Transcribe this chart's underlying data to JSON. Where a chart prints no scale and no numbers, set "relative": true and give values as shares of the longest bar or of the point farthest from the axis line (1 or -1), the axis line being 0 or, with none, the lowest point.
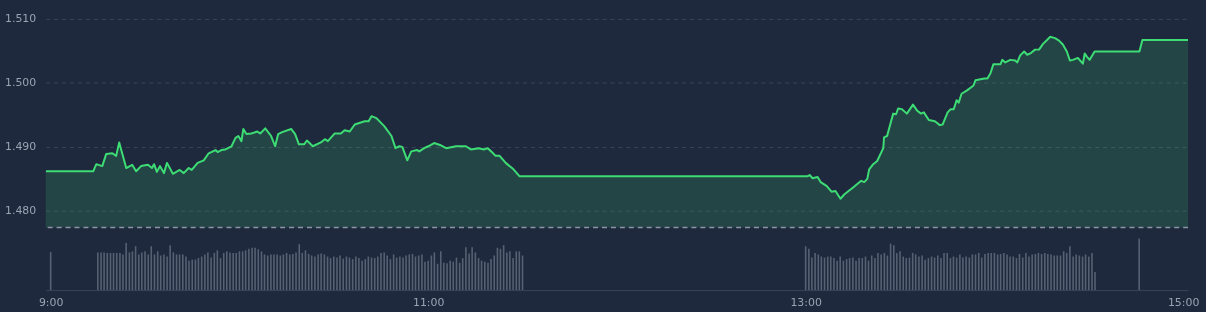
{
  "chart_data": [
    {
      "type": "area",
      "xlim": [
        9,
        15
      ],
      "ylim": [
        1.4774,
        1.51
      ],
      "yticks": [
        {
          "value": 1.48,
          "label": "1.480"
        },
        {
          "value": 1.49,
          "label": "1.490"
        },
        {
          "value": 1.5,
          "label": "1.500"
        },
        {
          "value": 1.51,
          "label": "1.510"
        }
      ],
      "grid": "y",
      "tick_labels": "y",
      "ref_lines": [
        {
          "axis": "y",
          "value": 1.4774,
          "color": "#8b95a5",
          "line_style": "dashed"
        }
      ],
      "series": [
        {
          "color": "#3ddc74",
          "x": [
            9.0,
            9.25,
            9.266,
            9.297,
            9.318,
            9.35,
            9.37,
            9.386,
            9.423,
            9.454,
            9.475,
            9.501,
            9.537,
            9.558,
            9.569,
            9.584,
            9.6,
            9.621,
            9.637,
            9.668,
            9.704,
            9.725,
            9.751,
            9.767,
            9.798,
            9.83,
            9.856,
            9.892,
            9.903,
            9.923,
            9.944,
            9.976,
            9.997,
            10.012,
            10.028,
            10.038,
            10.054,
            10.08,
            10.111,
            10.127,
            10.153,
            10.184,
            10.205,
            10.221,
            10.242,
            10.289,
            10.31,
            10.33,
            10.357,
            10.372,
            10.403,
            10.445,
            10.466,
            10.482,
            10.518,
            10.55,
            10.57,
            10.597,
            10.623,
            10.675,
            10.696,
            10.711,
            10.737,
            10.779,
            10.816,
            10.837,
            10.857,
            10.873,
            10.899,
            10.92,
            10.951,
            10.962,
            10.988,
            11.009,
            11.04,
            11.071,
            11.103,
            11.155,
            11.207,
            11.233,
            11.275,
            11.301,
            11.322,
            11.343,
            11.363,
            11.384,
            11.416,
            11.457,
            11.489,
            13.0,
            13.012,
            13.028,
            13.054,
            13.07,
            13.101,
            13.127,
            13.148,
            13.174,
            13.195,
            13.242,
            13.283,
            13.299,
            13.315,
            13.325,
            13.346,
            13.367,
            13.399,
            13.403,
            13.419,
            13.451,
            13.466,
            13.477,
            13.497,
            13.523,
            13.555,
            13.576,
            13.597,
            13.612,
            13.638,
            13.67,
            13.696,
            13.711,
            13.737,
            13.753,
            13.769,
            13.784,
            13.795,
            13.81,
            13.837,
            13.873,
            13.883,
            13.93,
            13.946,
            13.962,
            13.977,
            14.014,
            14.024,
            14.04,
            14.066,
            14.092,
            14.103,
            14.118,
            14.139,
            14.155,
            14.176,
            14.196,
            14.217,
            14.238,
            14.259,
            14.275,
            14.301,
            14.322,
            14.342,
            14.363,
            14.379,
            14.395,
            14.421,
            14.447,
            14.457,
            14.468,
            14.483,
            14.509,
            14.744,
            14.76,
            15.0
          ],
          "values": [
            1.4862,
            1.4862,
            1.4873,
            1.487,
            1.4889,
            1.489,
            1.4886,
            1.4907,
            1.4867,
            1.4872,
            1.4862,
            1.487,
            1.4872,
            1.4867,
            1.4873,
            1.4861,
            1.487,
            1.4859,
            1.4875,
            1.4858,
            1.4864,
            1.4859,
            1.4867,
            1.4864,
            1.4875,
            1.4879,
            1.489,
            1.4895,
            1.4892,
            1.4895,
            1.4896,
            1.4901,
            1.4914,
            1.4917,
            1.4909,
            1.4928,
            1.492,
            1.4921,
            1.4924,
            1.4921,
            1.4929,
            1.4917,
            1.4901,
            1.492,
            1.4923,
            1.4928,
            1.492,
            1.4904,
            1.4904,
            1.491,
            1.4901,
            1.4907,
            1.4912,
            1.4909,
            1.4921,
            1.4921,
            1.4926,
            1.4924,
            1.4935,
            1.494,
            1.494,
            1.4948,
            1.4945,
            1.4932,
            1.4917,
            1.4898,
            1.4901,
            1.49,
            1.4879,
            1.4893,
            1.4895,
            1.4893,
            1.4898,
            1.4901,
            1.4906,
            1.4903,
            1.4898,
            1.4901,
            1.4901,
            1.4896,
            1.4898,
            1.4896,
            1.4898,
            1.4892,
            1.4886,
            1.4886,
            1.4875,
            1.4865,
            1.4854,
            1.4854,
            1.4856,
            1.4851,
            1.4853,
            1.4845,
            1.4839,
            1.483,
            1.4831,
            1.4819,
            1.4826,
            1.4837,
            1.4847,
            1.4845,
            1.485,
            1.4865,
            1.4873,
            1.4878,
            1.4898,
            1.4915,
            1.4917,
            1.4952,
            1.4951,
            1.496,
            1.4959,
            1.4952,
            1.4966,
            1.4957,
            1.4952,
            1.4954,
            1.4942,
            1.494,
            1.4934,
            1.4935,
            1.4954,
            1.4959,
            1.4959,
            1.4973,
            1.4969,
            1.4983,
            1.4988,
            1.4996,
            1.5004,
            1.5007,
            1.5007,
            1.5015,
            1.5029,
            1.5029,
            1.5036,
            1.5032,
            1.5036,
            1.5035,
            1.5032,
            1.5043,
            1.5049,
            1.5044,
            1.5047,
            1.5052,
            1.5052,
            1.5061,
            1.5067,
            1.5072,
            1.507,
            1.5066,
            1.506,
            1.5049,
            1.5035,
            1.5036,
            1.5039,
            1.503,
            1.5046,
            1.5041,
            1.5036,
            1.5049,
            1.5049,
            1.5067,
            1.5067
          ]
        }
      ]
    },
    {
      "type": "bar",
      "relative": true,
      "xlim": [
        9,
        15
      ],
      "xticks": [
        {
          "value": 9,
          "label": "9:00"
        },
        {
          "value": 11,
          "label": "11:00"
        },
        {
          "value": 13,
          "label": "13:00"
        },
        {
          "value": 15,
          "label": "15:00"
        }
      ],
      "series": [
        {
          "color": "#566173",
          "x": [
            9.0,
            9.25,
            9.267,
            9.283,
            9.3,
            9.317,
            9.333,
            9.35,
            9.367,
            9.383,
            9.4,
            9.417,
            9.433,
            9.45,
            9.467,
            9.483,
            9.5,
            9.517,
            9.533,
            9.55,
            9.567,
            9.583,
            9.6,
            9.617,
            9.633,
            9.65,
            9.667,
            9.683,
            9.7,
            9.717,
            9.733,
            9.75,
            9.767,
            9.783,
            9.8,
            9.817,
            9.833,
            9.85,
            9.867,
            9.883,
            9.9,
            9.917,
            9.933,
            9.95,
            9.967,
            9.983,
            10.0,
            10.017,
            10.033,
            10.05,
            10.067,
            10.083,
            10.1,
            10.117,
            10.133,
            10.15,
            10.167,
            10.183,
            10.2,
            10.217,
            10.233,
            10.25,
            10.267,
            10.283,
            10.3,
            10.317,
            10.333,
            10.35,
            10.367,
            10.383,
            10.4,
            10.417,
            10.433,
            10.45,
            10.467,
            10.483,
            10.5,
            10.517,
            10.533,
            10.55,
            10.567,
            10.583,
            10.6,
            10.617,
            10.633,
            10.65,
            10.667,
            10.683,
            10.7,
            10.717,
            10.733,
            10.75,
            10.767,
            10.783,
            10.8,
            10.817,
            10.833,
            10.85,
            10.867,
            10.883,
            10.9,
            10.917,
            10.933,
            10.95,
            10.967,
            10.983,
            11.0,
            11.017,
            11.033,
            11.05,
            11.067,
            11.083,
            11.1,
            11.117,
            11.133,
            11.15,
            11.167,
            11.183,
            11.2,
            11.217,
            11.233,
            11.25,
            11.267,
            11.283,
            11.3,
            11.317,
            11.333,
            11.35,
            11.367,
            11.383,
            11.4,
            11.417,
            11.433,
            11.45,
            11.467,
            11.483,
            11.5,
            13.0,
            13.017,
            13.033,
            13.05,
            13.067,
            13.083,
            13.1,
            13.117,
            13.133,
            13.15,
            13.167,
            13.183,
            13.2,
            13.217,
            13.233,
            13.25,
            13.267,
            13.283,
            13.3,
            13.317,
            13.333,
            13.35,
            13.367,
            13.383,
            13.4,
            13.417,
            13.433,
            13.45,
            13.467,
            13.483,
            13.5,
            13.517,
            13.533,
            13.55,
            13.567,
            13.583,
            13.6,
            13.617,
            13.633,
            13.65,
            13.667,
            13.683,
            13.7,
            13.717,
            13.733,
            13.75,
            13.767,
            13.783,
            13.8,
            13.817,
            13.833,
            13.85,
            13.867,
            13.883,
            13.9,
            13.917,
            13.933,
            13.95,
            13.967,
            13.983,
            14.0,
            14.017,
            14.033,
            14.05,
            14.067,
            14.083,
            14.1,
            14.117,
            14.133,
            14.15,
            14.167,
            14.183,
            14.2,
            14.217,
            14.233,
            14.25,
            14.267,
            14.283,
            14.3,
            14.317,
            14.333,
            14.35,
            14.367,
            14.383,
            14.4,
            14.417,
            14.433,
            14.45,
            14.467,
            14.483,
            14.5,
            14.517,
            14.533,
            14.767
          ],
          "values": [
            0.74,
            0.73,
            0.73,
            0.73,
            0.72,
            0.72,
            0.72,
            0.72,
            0.72,
            0.69,
            0.91,
            0.73,
            0.75,
            0.85,
            0.69,
            0.73,
            0.75,
            0.69,
            0.85,
            0.69,
            0.75,
            0.67,
            0.69,
            0.65,
            0.87,
            0.73,
            0.69,
            0.69,
            0.69,
            0.65,
            0.57,
            0.59,
            0.59,
            0.62,
            0.65,
            0.69,
            0.73,
            0.63,
            0.72,
            0.77,
            0.62,
            0.72,
            0.75,
            0.73,
            0.72,
            0.72,
            0.75,
            0.75,
            0.77,
            0.8,
            0.82,
            0.82,
            0.79,
            0.75,
            0.69,
            0.67,
            0.69,
            0.69,
            0.69,
            0.67,
            0.69,
            0.72,
            0.69,
            0.7,
            0.73,
            0.89,
            0.72,
            0.77,
            0.7,
            0.67,
            0.65,
            0.69,
            0.71,
            0.69,
            0.65,
            0.62,
            0.65,
            0.63,
            0.67,
            0.61,
            0.65,
            0.63,
            0.6,
            0.65,
            0.62,
            0.57,
            0.6,
            0.65,
            0.63,
            0.62,
            0.65,
            0.72,
            0.73,
            0.67,
            0.6,
            0.69,
            0.63,
            0.65,
            0.63,
            0.67,
            0.69,
            0.7,
            0.65,
            0.67,
            0.69,
            0.55,
            0.57,
            0.67,
            0.73,
            0.51,
            0.75,
            0.53,
            0.52,
            0.57,
            0.55,
            0.63,
            0.53,
            0.62,
            0.83,
            0.71,
            0.83,
            0.73,
            0.62,
            0.57,
            0.55,
            0.53,
            0.6,
            0.67,
            0.82,
            0.8,
            0.87,
            0.73,
            0.75,
            0.62,
            0.75,
            0.75,
            0.67,
            0.85,
            0.8,
            0.63,
            0.72,
            0.69,
            0.65,
            0.63,
            0.65,
            0.65,
            0.62,
            0.57,
            0.65,
            0.57,
            0.6,
            0.62,
            0.63,
            0.57,
            0.62,
            0.62,
            0.65,
            0.57,
            0.67,
            0.62,
            0.72,
            0.69,
            0.72,
            0.67,
            0.9,
            0.87,
            0.72,
            0.75,
            0.65,
            0.62,
            0.63,
            0.72,
            0.69,
            0.65,
            0.67,
            0.59,
            0.62,
            0.65,
            0.63,
            0.67,
            0.62,
            0.72,
            0.72,
            0.62,
            0.65,
            0.63,
            0.69,
            0.63,
            0.65,
            0.63,
            0.69,
            0.69,
            0.72,
            0.63,
            0.7,
            0.72,
            0.72,
            0.72,
            0.69,
            0.7,
            0.72,
            0.69,
            0.65,
            0.65,
            0.62,
            0.7,
            0.63,
            0.72,
            0.65,
            0.69,
            0.7,
            0.72,
            0.7,
            0.72,
            0.7,
            0.69,
            0.67,
            0.67,
            0.67,
            0.75,
            0.72,
            0.85,
            0.65,
            0.69,
            0.67,
            0.65,
            0.69,
            0.65,
            0.72,
            0.35,
            1.0
          ]
        }
      ]
    }
  ]
}
